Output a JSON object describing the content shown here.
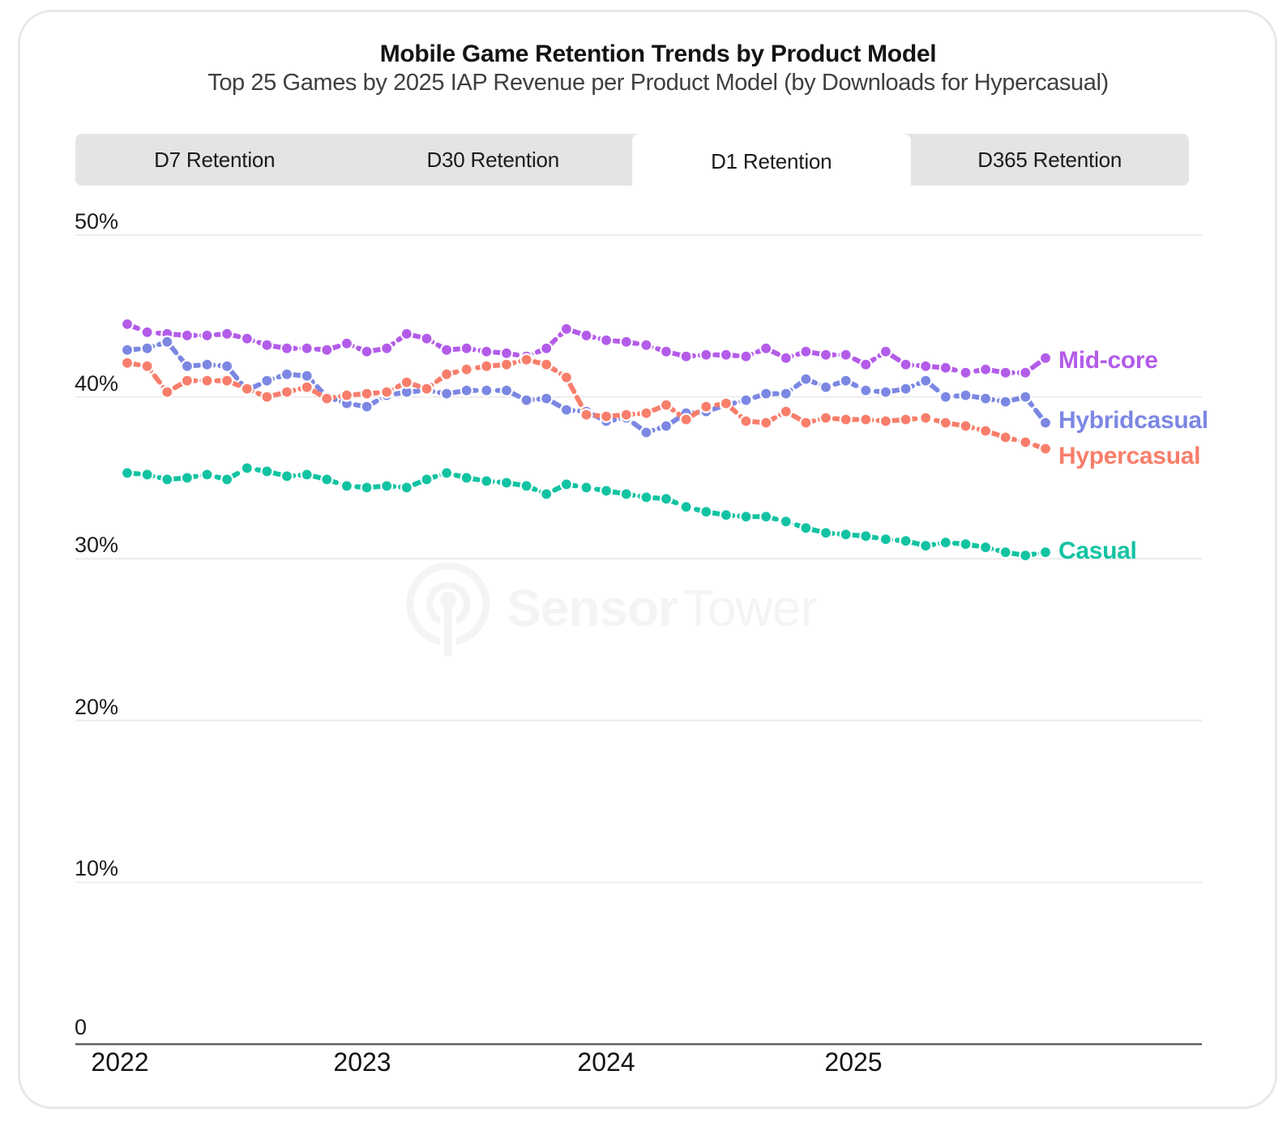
{
  "header": {
    "title": "Mobile Game Retention Trends by Product Model",
    "subtitle": "Top 25 Games by 2025 IAP Revenue per Product Model (by Downloads for Hypercasual)"
  },
  "tabs": {
    "items": [
      {
        "label": "D7 Retention",
        "active": false
      },
      {
        "label": "D30 Retention",
        "active": false
      },
      {
        "label": "D1 Retention",
        "active": true
      },
      {
        "label": "D365 Retention",
        "active": false
      }
    ]
  },
  "watermark": {
    "bold": "Sensor",
    "light": "Tower"
  },
  "chart_data": {
    "type": "line",
    "title": "Mobile Game Retention Trends by Product Model",
    "x_unit": "month",
    "x_start": "2022-01",
    "x_end": "2025-11",
    "x_tick_labels": [
      "2022",
      "2023",
      "2024",
      "2025"
    ],
    "y_tick_labels": [
      "50%",
      "40%",
      "30%",
      "20%",
      "10%",
      "0"
    ],
    "ylim": [
      0,
      52
    ],
    "grid": "horizontal",
    "legend_position": "right-end-labels",
    "line_style": "dashed-with-dots",
    "series": [
      {
        "name": "Mid-core",
        "color": "#b35ce9",
        "values": [
          44.5,
          44.0,
          43.9,
          43.8,
          43.8,
          43.9,
          43.6,
          43.2,
          43.0,
          43.0,
          42.9,
          43.3,
          42.8,
          43.0,
          43.9,
          43.6,
          42.9,
          43.0,
          42.8,
          42.7,
          42.5,
          43.0,
          44.2,
          43.8,
          43.5,
          43.4,
          43.2,
          42.8,
          42.5,
          42.6,
          42.6,
          42.5,
          43.0,
          42.4,
          42.8,
          42.6,
          42.6,
          42.0,
          42.8,
          42.0,
          41.9,
          41.8,
          41.5,
          41.7,
          41.5,
          41.5,
          42.4
        ]
      },
      {
        "name": "Hybridcasual",
        "color": "#7c87e3",
        "values": [
          42.9,
          43.0,
          43.4,
          41.9,
          42.0,
          41.9,
          40.4,
          41.0,
          41.4,
          41.3,
          40.0,
          39.6,
          39.4,
          40.1,
          40.3,
          40.4,
          40.2,
          40.4,
          40.4,
          40.4,
          39.8,
          39.9,
          39.2,
          39.1,
          38.5,
          38.7,
          37.8,
          38.2,
          39.0,
          39.1,
          39.5,
          39.8,
          40.2,
          40.2,
          41.1,
          40.6,
          41.0,
          40.4,
          40.3,
          40.5,
          41.0,
          40.0,
          40.1,
          39.9,
          39.7,
          40.0,
          38.4
        ]
      },
      {
        "name": "Hypercasual",
        "color": "#f87e6b",
        "values": [
          42.1,
          41.9,
          40.3,
          41.0,
          41.0,
          41.0,
          40.5,
          40.0,
          40.3,
          40.6,
          39.9,
          40.1,
          40.2,
          40.3,
          40.9,
          40.5,
          41.4,
          41.7,
          41.9,
          42.0,
          42.3,
          42.0,
          41.2,
          38.9,
          38.8,
          38.9,
          39.0,
          39.5,
          38.6,
          39.4,
          39.6,
          38.5,
          38.4,
          39.1,
          38.4,
          38.7,
          38.6,
          38.6,
          38.5,
          38.6,
          38.7,
          38.4,
          38.2,
          37.9,
          37.5,
          37.2,
          36.8
        ]
      },
      {
        "name": "Casual",
        "color": "#12c3a2",
        "values": [
          35.3,
          35.2,
          34.9,
          35.0,
          35.2,
          34.9,
          35.6,
          35.4,
          35.1,
          35.2,
          34.9,
          34.5,
          34.4,
          34.5,
          34.4,
          34.9,
          35.3,
          35.0,
          34.8,
          34.7,
          34.5,
          34.0,
          34.6,
          34.4,
          34.2,
          34.0,
          33.8,
          33.7,
          33.2,
          32.9,
          32.7,
          32.6,
          32.6,
          32.3,
          31.9,
          31.6,
          31.5,
          31.4,
          31.2,
          31.1,
          30.8,
          31.0,
          30.9,
          30.7,
          30.4,
          30.2,
          30.4
        ]
      }
    ]
  }
}
